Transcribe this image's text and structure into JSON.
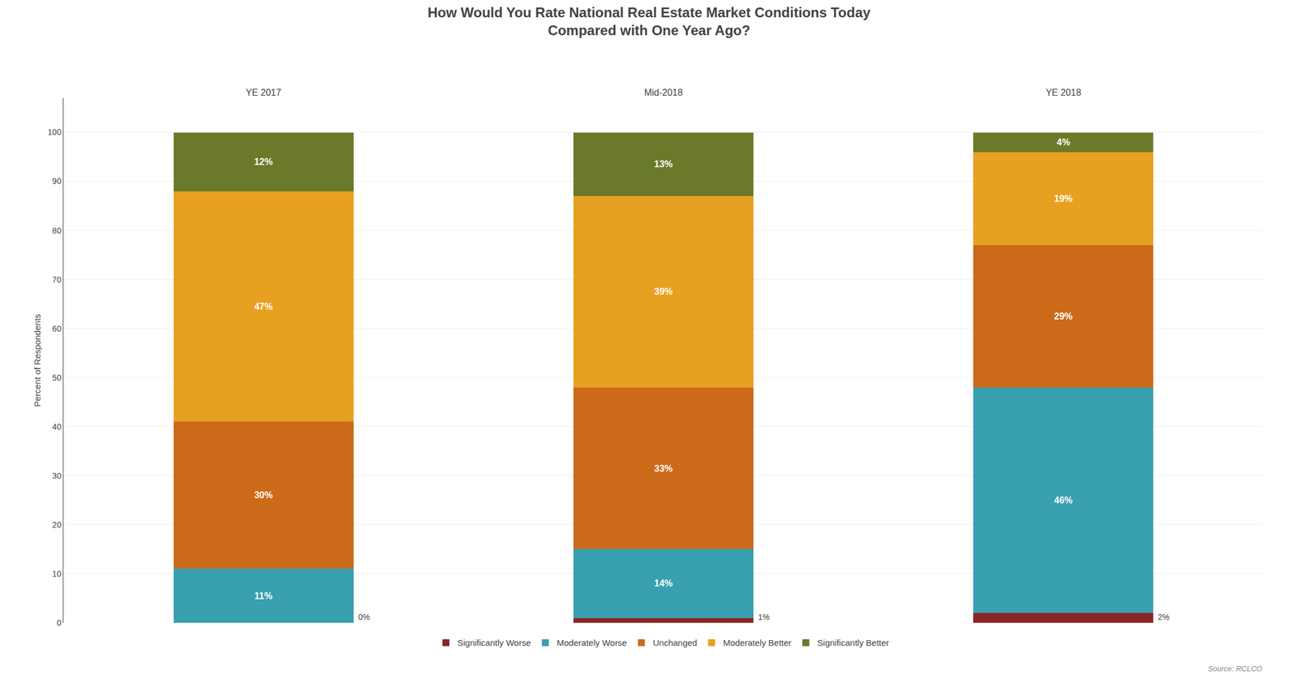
{
  "chart_data": {
    "type": "bar",
    "stacked": true,
    "title": "How Would You Rate National Real Estate Market Conditions Today\nCompared with One Year Ago?",
    "categories": [
      "YE 2017",
      "Mid-2018",
      "YE 2018"
    ],
    "series": [
      {
        "name": "Significantly Worse",
        "color": "#8B2525",
        "values": [
          0,
          1,
          2
        ],
        "value_labels": [
          "0%",
          "1%",
          "2%"
        ]
      },
      {
        "name": "Moderately Worse",
        "color": "#38A0AE",
        "values": [
          11,
          14,
          46
        ],
        "value_labels": [
          "11%",
          "14%",
          "46%"
        ]
      },
      {
        "name": "Unchanged",
        "color": "#CC6A1A",
        "values": [
          30,
          33,
          29
        ],
        "value_labels": [
          "30%",
          "33%",
          "29%"
        ]
      },
      {
        "name": "Moderately Better",
        "color": "#E8A020",
        "values": [
          47,
          39,
          19
        ],
        "value_labels": [
          "47%",
          "39%",
          "19%"
        ]
      },
      {
        "name": "Significantly Better",
        "color": "#6B7A2A",
        "values": [
          12,
          13,
          4
        ],
        "value_labels": [
          "12%",
          "13%",
          "4%"
        ]
      }
    ],
    "ylabel": "Percent of Respondents",
    "ylim": [
      0,
      107
    ],
    "yticks": [
      0,
      10,
      20,
      30,
      40,
      50,
      60,
      70,
      80,
      90,
      100
    ],
    "grid": true,
    "legend": "bottom",
    "data_labels": true,
    "annotations": [
      "Source: RCLCO"
    ]
  }
}
